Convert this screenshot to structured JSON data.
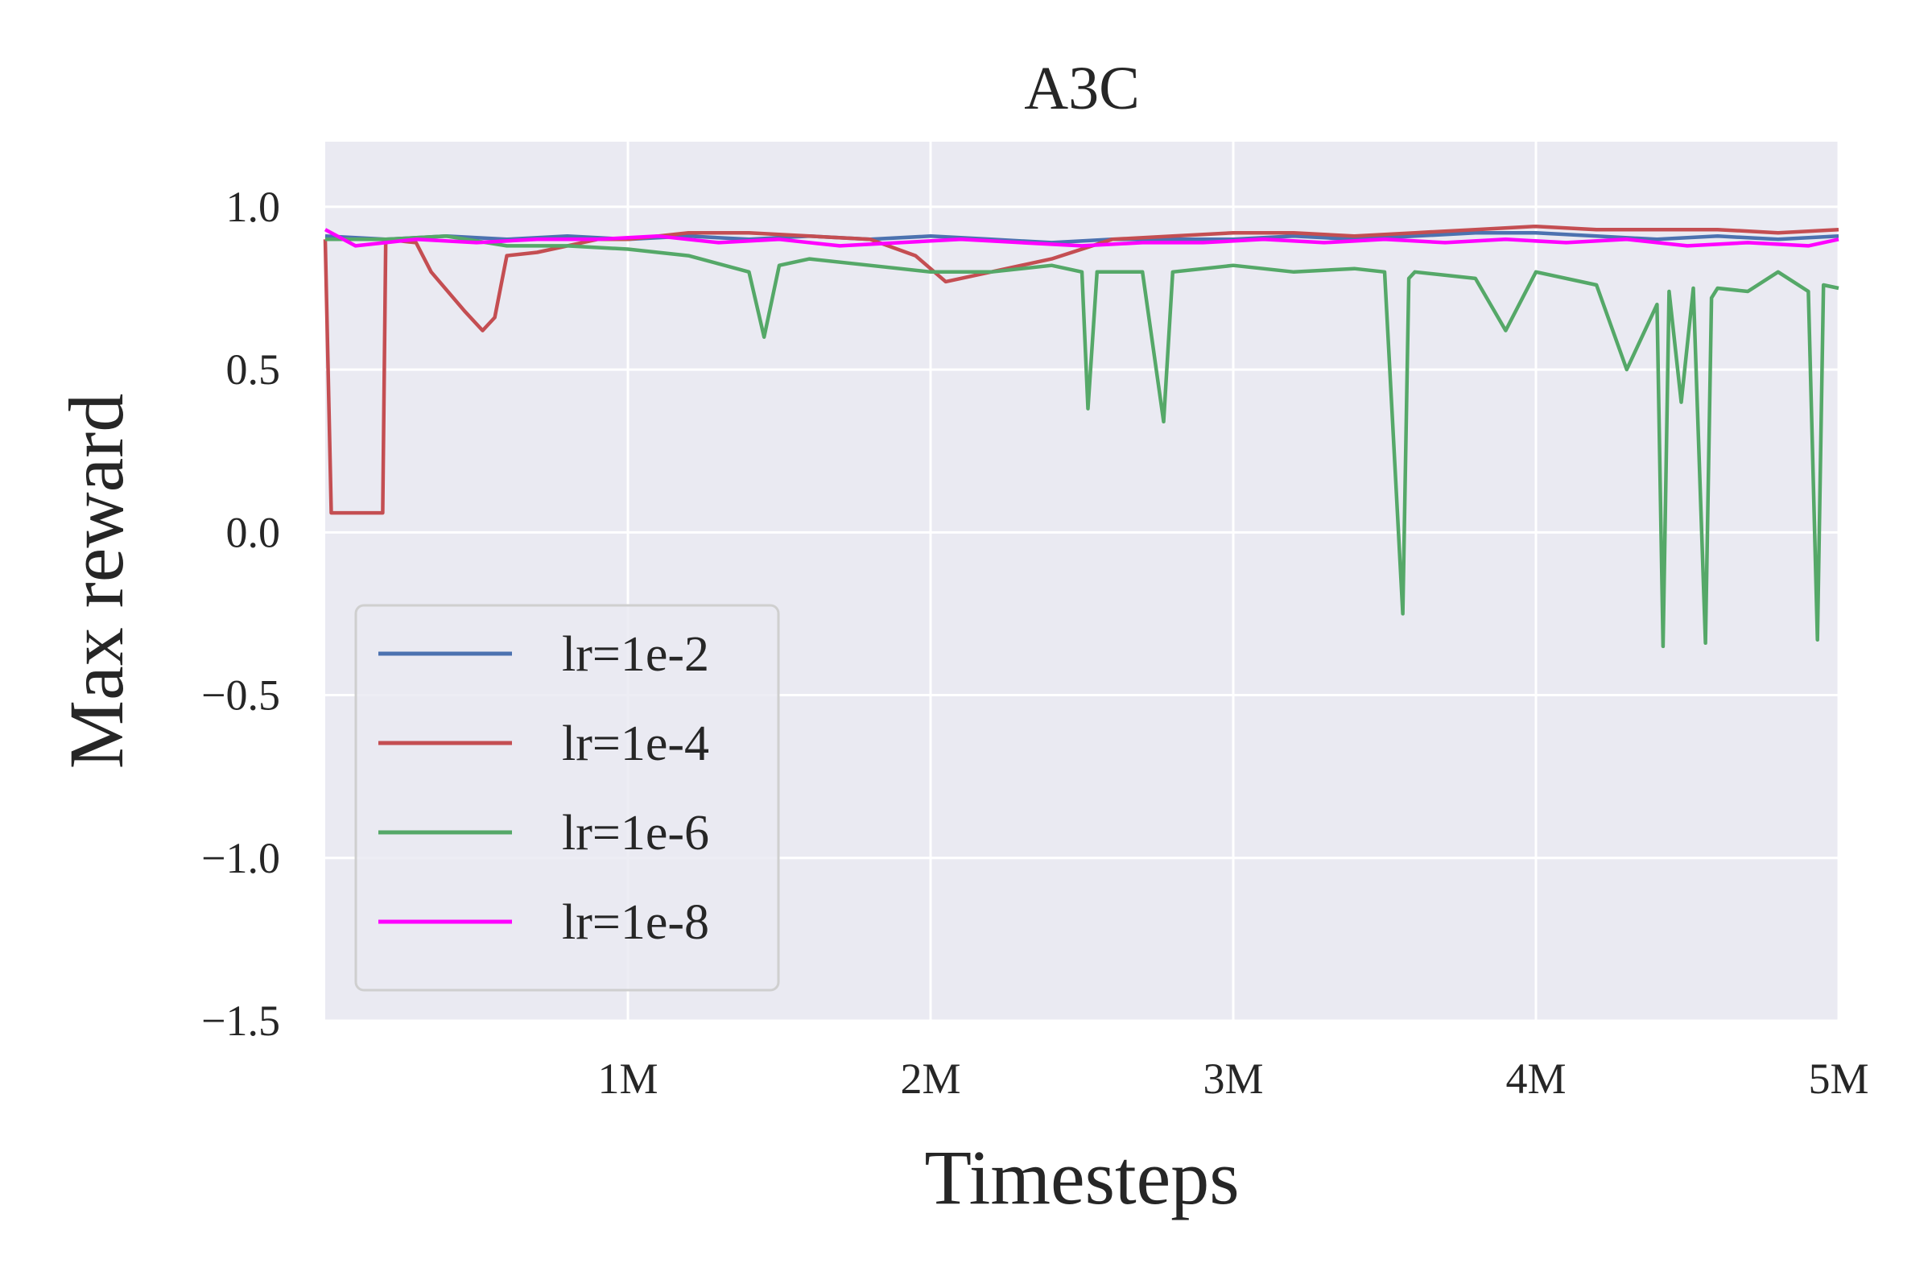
{
  "chart_data": {
    "type": "line",
    "title": "A3C",
    "xlabel": "Timesteps",
    "ylabel": "Max reward",
    "xlim": [
      0,
      5000000
    ],
    "ylim": [
      -1.5,
      1.2
    ],
    "x_ticks": [
      {
        "value": 1000000,
        "label": "1M"
      },
      {
        "value": 2000000,
        "label": "2M"
      },
      {
        "value": 3000000,
        "label": "3M"
      },
      {
        "value": 4000000,
        "label": "4M"
      },
      {
        "value": 5000000,
        "label": "5M"
      }
    ],
    "y_ticks": [
      {
        "value": 1.0,
        "label": "1.0"
      },
      {
        "value": 0.5,
        "label": "0.5"
      },
      {
        "value": 0.0,
        "label": "0.0"
      },
      {
        "value": -0.5,
        "label": "−0.5"
      },
      {
        "value": -1.0,
        "label": "−1.0"
      },
      {
        "value": -1.5,
        "label": "−1.5"
      }
    ],
    "grid": true,
    "legend_position": "lower-left",
    "background_color": "#eaeaf2",
    "series": [
      {
        "name": "lr=1e-2",
        "color": "#4c72b0",
        "x": [
          0,
          200000,
          400000,
          600000,
          800000,
          1000000,
          1200000,
          1400000,
          1600000,
          1800000,
          2000000,
          2200000,
          2400000,
          2600000,
          2800000,
          3000000,
          3200000,
          3400000,
          3600000,
          3800000,
          4000000,
          4200000,
          4400000,
          4600000,
          4800000,
          5000000
        ],
        "y": [
          0.91,
          0.9,
          0.91,
          0.9,
          0.91,
          0.9,
          0.91,
          0.9,
          0.91,
          0.9,
          0.91,
          0.9,
          0.89,
          0.9,
          0.9,
          0.9,
          0.91,
          0.9,
          0.91,
          0.92,
          0.92,
          0.91,
          0.9,
          0.91,
          0.9,
          0.91
        ]
      },
      {
        "name": "lr=1e-4",
        "color": "#c44e52",
        "x": [
          0,
          20000,
          190000,
          200000,
          300000,
          350000,
          460000,
          520000,
          560000,
          600000,
          700000,
          800000,
          900000,
          1000000,
          1200000,
          1400000,
          1600000,
          1800000,
          1950000,
          2050000,
          2200000,
          2400000,
          2600000,
          2800000,
          3000000,
          3200000,
          3400000,
          3600000,
          3800000,
          4000000,
          4200000,
          4400000,
          4600000,
          4800000,
          5000000
        ],
        "y": [
          0.9,
          0.06,
          0.06,
          0.9,
          0.89,
          0.8,
          0.68,
          0.62,
          0.66,
          0.85,
          0.86,
          0.88,
          0.9,
          0.9,
          0.92,
          0.92,
          0.91,
          0.9,
          0.85,
          0.77,
          0.8,
          0.84,
          0.9,
          0.91,
          0.92,
          0.92,
          0.91,
          0.92,
          0.93,
          0.94,
          0.93,
          0.93,
          0.93,
          0.92,
          0.93
        ]
      },
      {
        "name": "lr=1e-6",
        "color": "#55a868",
        "x": [
          0,
          200000,
          400000,
          600000,
          800000,
          1000000,
          1200000,
          1400000,
          1450000,
          1500000,
          1600000,
          1800000,
          2000000,
          2200000,
          2400000,
          2500000,
          2520000,
          2550000,
          2700000,
          2770000,
          2800000,
          3000000,
          3200000,
          3400000,
          3500000,
          3560000,
          3580000,
          3600000,
          3800000,
          3900000,
          4000000,
          4200000,
          4300000,
          4400000,
          4420000,
          4440000,
          4480000,
          4520000,
          4560000,
          4580000,
          4600000,
          4700000,
          4800000,
          4900000,
          4930000,
          4950000,
          5000000
        ],
        "y": [
          0.9,
          0.9,
          0.91,
          0.88,
          0.88,
          0.87,
          0.85,
          0.8,
          0.6,
          0.82,
          0.84,
          0.82,
          0.8,
          0.8,
          0.82,
          0.8,
          0.38,
          0.8,
          0.8,
          0.34,
          0.8,
          0.82,
          0.8,
          0.81,
          0.8,
          -0.25,
          0.78,
          0.8,
          0.78,
          0.62,
          0.8,
          0.76,
          0.5,
          0.7,
          -0.35,
          0.74,
          0.4,
          0.75,
          -0.34,
          0.72,
          0.75,
          0.74,
          0.8,
          0.74,
          -0.33,
          0.76,
          0.75
        ]
      },
      {
        "name": "lr=1e-8",
        "color": "#ff00ff",
        "x": [
          0,
          100000,
          300000,
          500000,
          700000,
          900000,
          1100000,
          1300000,
          1500000,
          1700000,
          1900000,
          2100000,
          2300000,
          2500000,
          2700000,
          2900000,
          3100000,
          3300000,
          3500000,
          3700000,
          3900000,
          4100000,
          4300000,
          4500000,
          4700000,
          4900000,
          5000000
        ],
        "y": [
          0.93,
          0.88,
          0.9,
          0.89,
          0.9,
          0.9,
          0.91,
          0.89,
          0.9,
          0.88,
          0.89,
          0.9,
          0.89,
          0.88,
          0.89,
          0.89,
          0.9,
          0.89,
          0.9,
          0.89,
          0.9,
          0.89,
          0.9,
          0.88,
          0.89,
          0.88,
          0.9
        ]
      }
    ]
  }
}
